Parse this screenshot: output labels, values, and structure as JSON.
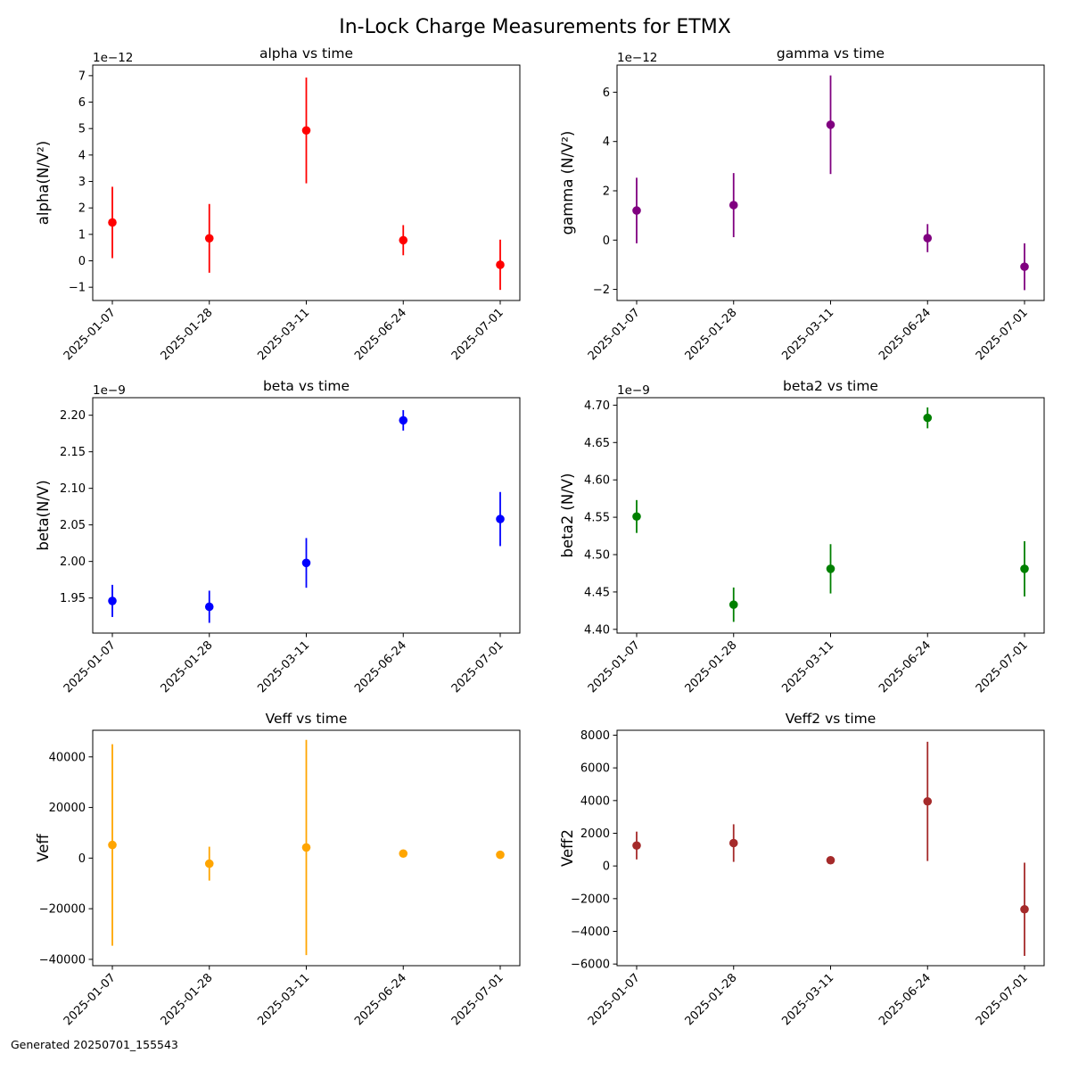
{
  "figure": {
    "suptitle": "In-Lock Charge Measurements for ETMX",
    "footer": "Generated 20250701_155543"
  },
  "chart_data": [
    {
      "type": "scatter",
      "title": "alpha vs time",
      "xlabel": "",
      "ylabel": "alpha(N/V²)",
      "x": [
        "2025-01-07",
        "2025-01-28",
        "2025-03-11",
        "2025-06-24",
        "2025-07-01"
      ],
      "y": [
        1.45e-12,
        8.5e-13,
        4.93e-12,
        7.8e-13,
        -1.5e-13
      ],
      "yerr": [
        1.35e-12,
        1.3e-12,
        2e-12,
        5.7e-13,
        9.5e-13
      ],
      "offset_text": "1e−12",
      "ylim": [
        -1.5e-12,
        7.4e-12
      ],
      "yticks": [
        -1e-12,
        0,
        1e-12,
        2e-12,
        3e-12,
        4e-12,
        5e-12,
        6e-12,
        7e-12
      ],
      "ytick_labels": [
        "−1",
        "0",
        "1",
        "2",
        "3",
        "4",
        "5",
        "6",
        "7"
      ],
      "color": "#ff0000",
      "grid": false
    },
    {
      "type": "scatter",
      "title": "gamma vs time",
      "xlabel": "",
      "ylabel": "gamma (N/V²)",
      "x": [
        "2025-01-07",
        "2025-01-28",
        "2025-03-11",
        "2025-06-24",
        "2025-07-01"
      ],
      "y": [
        1.2e-12,
        1.42e-12,
        4.68e-12,
        8e-14,
        -1.08e-12
      ],
      "yerr": [
        1.33e-12,
        1.3e-12,
        2e-12,
        5.7e-13,
        9.5e-13
      ],
      "offset_text": "1e−12",
      "ylim": [
        -2.45e-12,
        7.1e-12
      ],
      "yticks": [
        -2e-12,
        0,
        2e-12,
        4e-12,
        6e-12
      ],
      "ytick_labels": [
        "−2",
        "0",
        "2",
        "4",
        "6"
      ],
      "color": "#800080",
      "grid": false
    },
    {
      "type": "scatter",
      "title": "beta vs time",
      "xlabel": "",
      "ylabel": "beta(N/V)",
      "x": [
        "2025-01-07",
        "2025-01-28",
        "2025-03-11",
        "2025-06-24",
        "2025-07-01"
      ],
      "y": [
        1.946e-09,
        1.938e-09,
        1.998e-09,
        2.193e-09,
        2.058e-09
      ],
      "yerr": [
        2.2e-11,
        2.2e-11,
        3.4e-11,
        1.4e-11,
        3.7e-11
      ],
      "offset_text": "1e−9",
      "ylim": [
        1.902e-09,
        2.224e-09
      ],
      "yticks": [
        1.95e-09,
        2e-09,
        2.05e-09,
        2.1e-09,
        2.15e-09,
        2.2e-09
      ],
      "ytick_labels": [
        "1.95",
        "2.00",
        "2.05",
        "2.10",
        "2.15",
        "2.20"
      ],
      "color": "#0000ff",
      "grid": false
    },
    {
      "type": "scatter",
      "title": "beta2 vs time",
      "xlabel": "",
      "ylabel": "beta2 (N/V)",
      "x": [
        "2025-01-07",
        "2025-01-28",
        "2025-03-11",
        "2025-06-24",
        "2025-07-01"
      ],
      "y": [
        4.551e-09,
        4.433e-09,
        4.481e-09,
        4.683e-09,
        4.481e-09
      ],
      "yerr": [
        2.2e-11,
        2.3e-11,
        3.3e-11,
        1.4e-11,
        3.7e-11
      ],
      "offset_text": "1e−9",
      "ylim": [
        4.395e-09,
        4.71e-09
      ],
      "yticks": [
        4.4e-09,
        4.45e-09,
        4.5e-09,
        4.55e-09,
        4.6e-09,
        4.65e-09,
        4.7e-09
      ],
      "ytick_labels": [
        "4.40",
        "4.45",
        "4.50",
        "4.55",
        "4.60",
        "4.65",
        "4.70"
      ],
      "color": "#008000",
      "grid": false
    },
    {
      "type": "scatter",
      "title": "Veff vs time",
      "xlabel": "",
      "ylabel": "Veff",
      "x": [
        "2025-01-07",
        "2025-01-28",
        "2025-03-11",
        "2025-06-24",
        "2025-07-01"
      ],
      "y": [
        5200,
        -2200,
        4200,
        1800,
        1300
      ],
      "yerr": [
        39800,
        6700,
        42500,
        1300,
        800
      ],
      "offset_text": "",
      "ylim": [
        -42500,
        50500
      ],
      "yticks": [
        -40000,
        -20000,
        0,
        20000,
        40000
      ],
      "ytick_labels": [
        "−40000",
        "−20000",
        "0",
        "20000",
        "40000"
      ],
      "color": "#ffa500",
      "grid": false
    },
    {
      "type": "scatter",
      "title": "Veff2 vs time",
      "xlabel": "",
      "ylabel": "Veff2",
      "x": [
        "2025-01-07",
        "2025-01-28",
        "2025-03-11",
        "2025-06-24",
        "2025-07-01"
      ],
      "y": [
        1250,
        1400,
        350,
        3950,
        -2650
      ],
      "yerr": [
        850,
        1150,
        80,
        3650,
        2850
      ],
      "offset_text": "",
      "ylim": [
        -6100,
        8300
      ],
      "yticks": [
        -6000,
        -4000,
        -2000,
        0,
        2000,
        4000,
        6000,
        8000
      ],
      "ytick_labels": [
        "−6000",
        "−4000",
        "−2000",
        "0",
        "2000",
        "4000",
        "6000",
        "8000"
      ],
      "color": "#a52a2a",
      "grid": false
    }
  ]
}
